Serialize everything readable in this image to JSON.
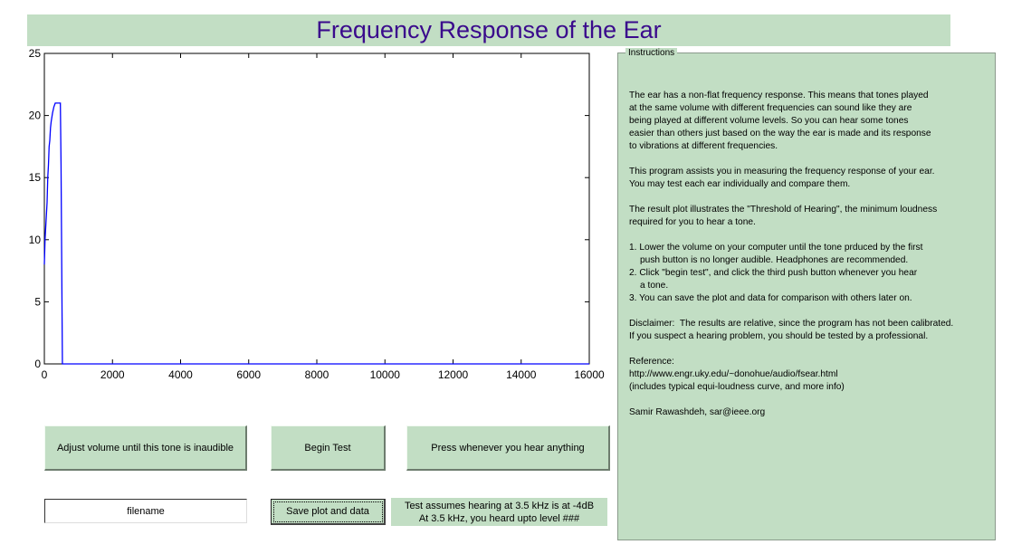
{
  "window": {
    "title": "Frequency Response of the Ear"
  },
  "colors": {
    "panel_bg": "#c2dec4",
    "title_text": "#3a0a8c",
    "plot_line": "#0000ff"
  },
  "chart_data": {
    "type": "line",
    "title": "",
    "xlabel": "",
    "ylabel": "",
    "xlim": [
      0,
      16000
    ],
    "ylim": [
      0,
      25
    ],
    "xticks": [
      0,
      2000,
      4000,
      6000,
      8000,
      10000,
      12000,
      14000,
      16000
    ],
    "yticks": [
      0,
      5,
      10,
      15,
      20,
      25
    ],
    "grid": false,
    "series": [
      {
        "color": "#0000ff",
        "x": [
          0,
          20,
          40,
          60,
          80,
          100,
          120,
          140,
          160,
          180,
          200,
          240,
          280,
          320,
          360,
          400,
          440,
          470,
          490,
          510,
          530,
          550,
          575
        ],
        "y": [
          8,
          10,
          11,
          12,
          13,
          15,
          16,
          17.5,
          18,
          19,
          19.5,
          20.2,
          20.7,
          21,
          21,
          21,
          21,
          21,
          16,
          8,
          0,
          0,
          0
        ]
      }
    ]
  },
  "buttons": {
    "adjust_volume": "Adjust volume until this tone is inaudible",
    "begin_test": "Begin Test",
    "press_hear": "Press whenever you hear anything",
    "save": "Save plot and data"
  },
  "filename_input": {
    "value": "filename"
  },
  "status": {
    "line1": "Test assumes hearing at 3.5 kHz is at -4dB",
    "line2": "At 3.5 kHz, you heard upto level ###"
  },
  "instructions": {
    "title": "Instructions",
    "paragraph1": "The ear has a non-flat frequency response. This means that tones played\nat the same volume with different frequencies can sound like they are\nbeing played at different volume levels. So you can hear some tones\neasier than others just based on the way the ear is made and its response\nto vibrations at different frequencies.",
    "paragraph2": "This program assists you in measuring the frequency response of your ear.\nYou may test each ear individually and compare them.",
    "paragraph3": "The result plot illustrates the \"Threshold of Hearing\", the minimum loudness\nrequired for you to hear a tone.",
    "step1a": "1. Lower the volume on your computer until the tone prduced by the first",
    "step1b": "push button is no longer audible. Headphones are recommended.",
    "step2a": "2. Click \"begin test\", and click the third push button whenever you hear",
    "step2b": "a tone.",
    "step3": "3. You can save the plot and data for comparison with others later on.",
    "disclaimer": "Disclaimer:  The results are relative, since the program has not been calibrated.\nIf you suspect a hearing problem, you should be tested by a professional.",
    "reference": "Reference:\nhttp://www.engr.uky.edu/~donohue/audio/fsear.html\n(includes typical equi-loudness curve, and more info)",
    "author": "Samir Rawashdeh, sar@ieee.org"
  }
}
